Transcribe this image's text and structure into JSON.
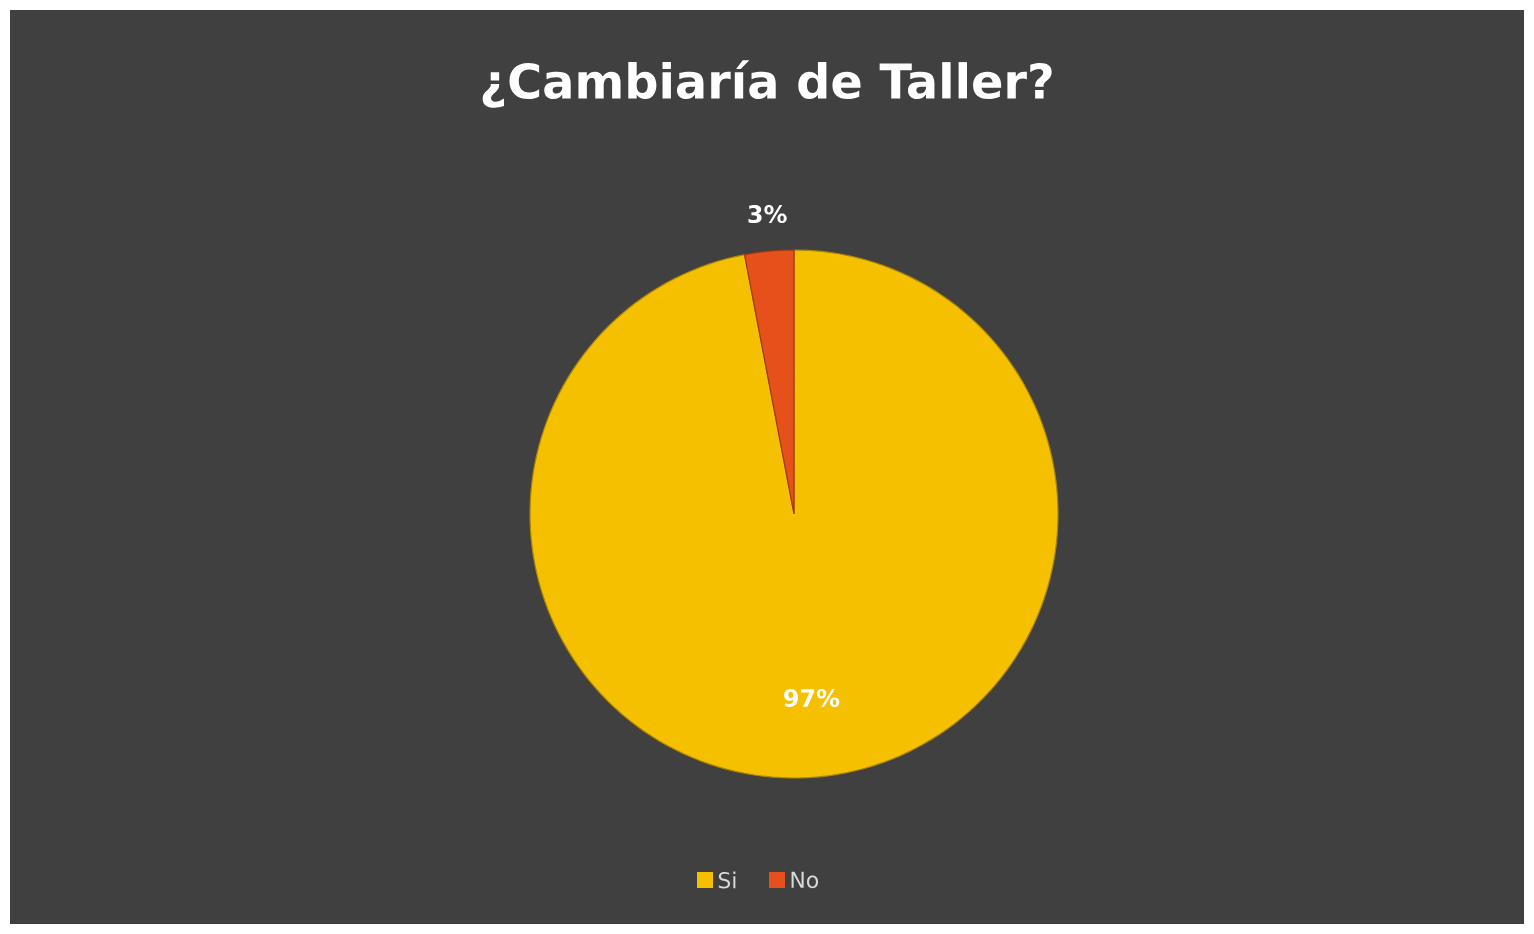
{
  "chart_data": {
    "type": "pie",
    "title": "¿Cambiaría de Taller?",
    "categories": [
      "Si",
      "No"
    ],
    "values": [
      97,
      3
    ],
    "colors": [
      "#f5c000",
      "#e5501b"
    ],
    "value_labels": [
      "97%",
      "3%"
    ],
    "legend": "bottom"
  }
}
